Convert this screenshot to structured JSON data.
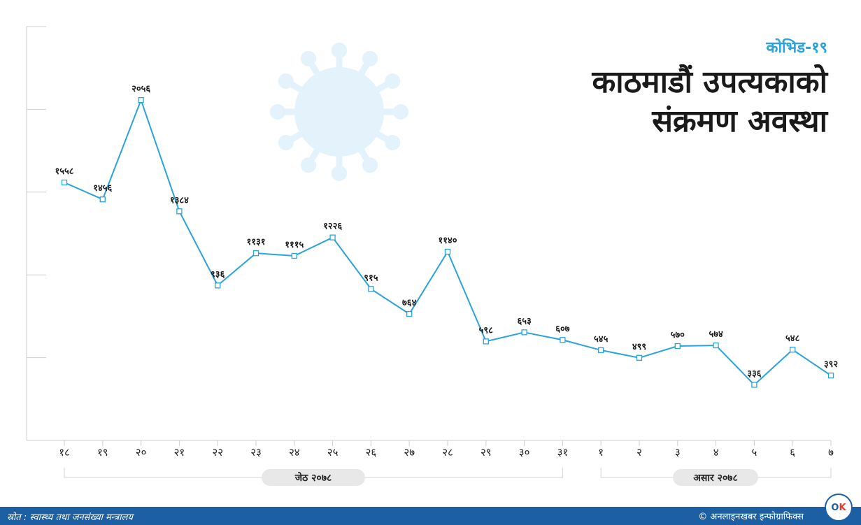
{
  "header": {
    "kicker": "कोभिड-१९",
    "title_line1": "काठमाडौं उपत्यकाको",
    "title_line2": "संक्रमण अवस्था"
  },
  "footer": {
    "source": "स्रोत : स्वास्थ्य तथा जनसंख्या मन्त्रालय",
    "credit": "© अनलाइनखबर इन्फोग्राफिक्स",
    "logo_left": "O",
    "logo_right": "K"
  },
  "colors": {
    "line": "#2aa3dc",
    "footer_bg": "#1d5fa3",
    "decor": "#e3f2fb"
  },
  "chart_data": {
    "type": "line",
    "title": "काठमाडौं उपत्यकाको संक्रमण अवस्था",
    "categories": [
      "१८",
      "१९",
      "२०",
      "२१",
      "२२",
      "२३",
      "२४",
      "२५",
      "२६",
      "२७",
      "२८",
      "२९",
      "३०",
      "३१",
      "१",
      "२",
      "३",
      "४",
      "५",
      "६",
      "७"
    ],
    "series": [
      {
        "values": [
          1558,
          1456,
          2056,
          1384,
          936,
          1131,
          1115,
          1226,
          915,
          764,
          1140,
          598,
          653,
          607,
          545,
          499,
          570,
          574,
          336,
          548,
          392
        ],
        "labels": [
          "१५५८",
          "१४५६",
          "२०५६",
          "१३८४",
          "९३६",
          "११३१",
          "१११५",
          "१२२६",
          "९१५",
          "७६४",
          "११४०",
          "५९८",
          "६५३",
          "६०७",
          "५४५",
          "४९९",
          "५७०",
          "५७४",
          "३३६",
          "५४८",
          "३९२"
        ]
      }
    ],
    "groups": [
      {
        "label": "जेठ २०७८",
        "from": 0,
        "to": 13
      },
      {
        "label": "असार २०७८",
        "from": 14,
        "to": 20
      }
    ],
    "ylim": [
      0,
      2500
    ],
    "grid": false
  }
}
